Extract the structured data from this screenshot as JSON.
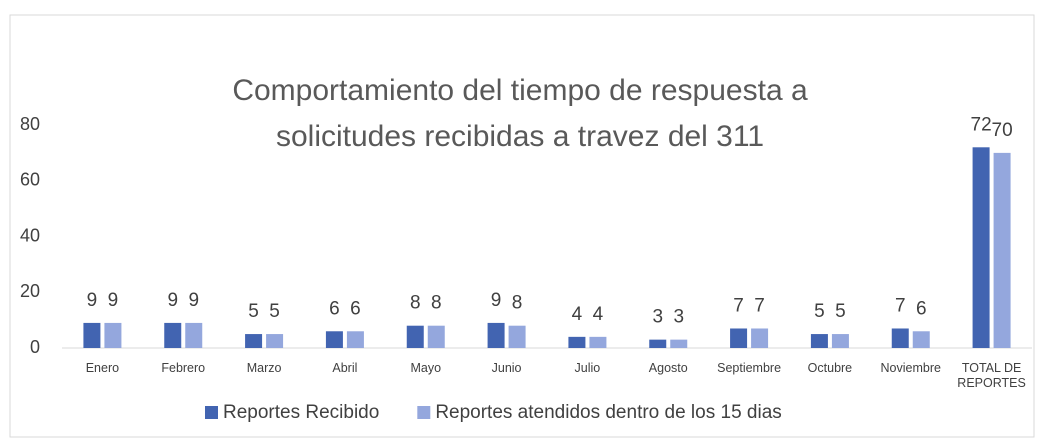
{
  "chart_data": {
    "type": "bar",
    "title": "Comportamiento del tiempo de respuesta a solicitudes recibidas a travez del 311",
    "categories": [
      "Enero",
      "Febrero",
      "Marzo",
      "Abril",
      "Mayo",
      "Junio",
      "Julio",
      "Agosto",
      "Septiembre",
      "Octubre",
      "Noviembre",
      "TOTAL DE REPORTES"
    ],
    "series": [
      {
        "name": "Reportes Recibido",
        "color": "#4264b1",
        "values": [
          9,
          9,
          5,
          6,
          8,
          9,
          4,
          3,
          7,
          5,
          7,
          72
        ]
      },
      {
        "name": "Reportes atendidos dentro de los 15 dias",
        "color": "#94a7dd",
        "values": [
          9,
          9,
          5,
          6,
          8,
          8,
          4,
          3,
          7,
          5,
          6,
          70
        ]
      }
    ],
    "ylim": [
      0,
      80
    ],
    "yticks": [
      0,
      20,
      40,
      60,
      80
    ],
    "grid": false,
    "legend": "bottom"
  }
}
